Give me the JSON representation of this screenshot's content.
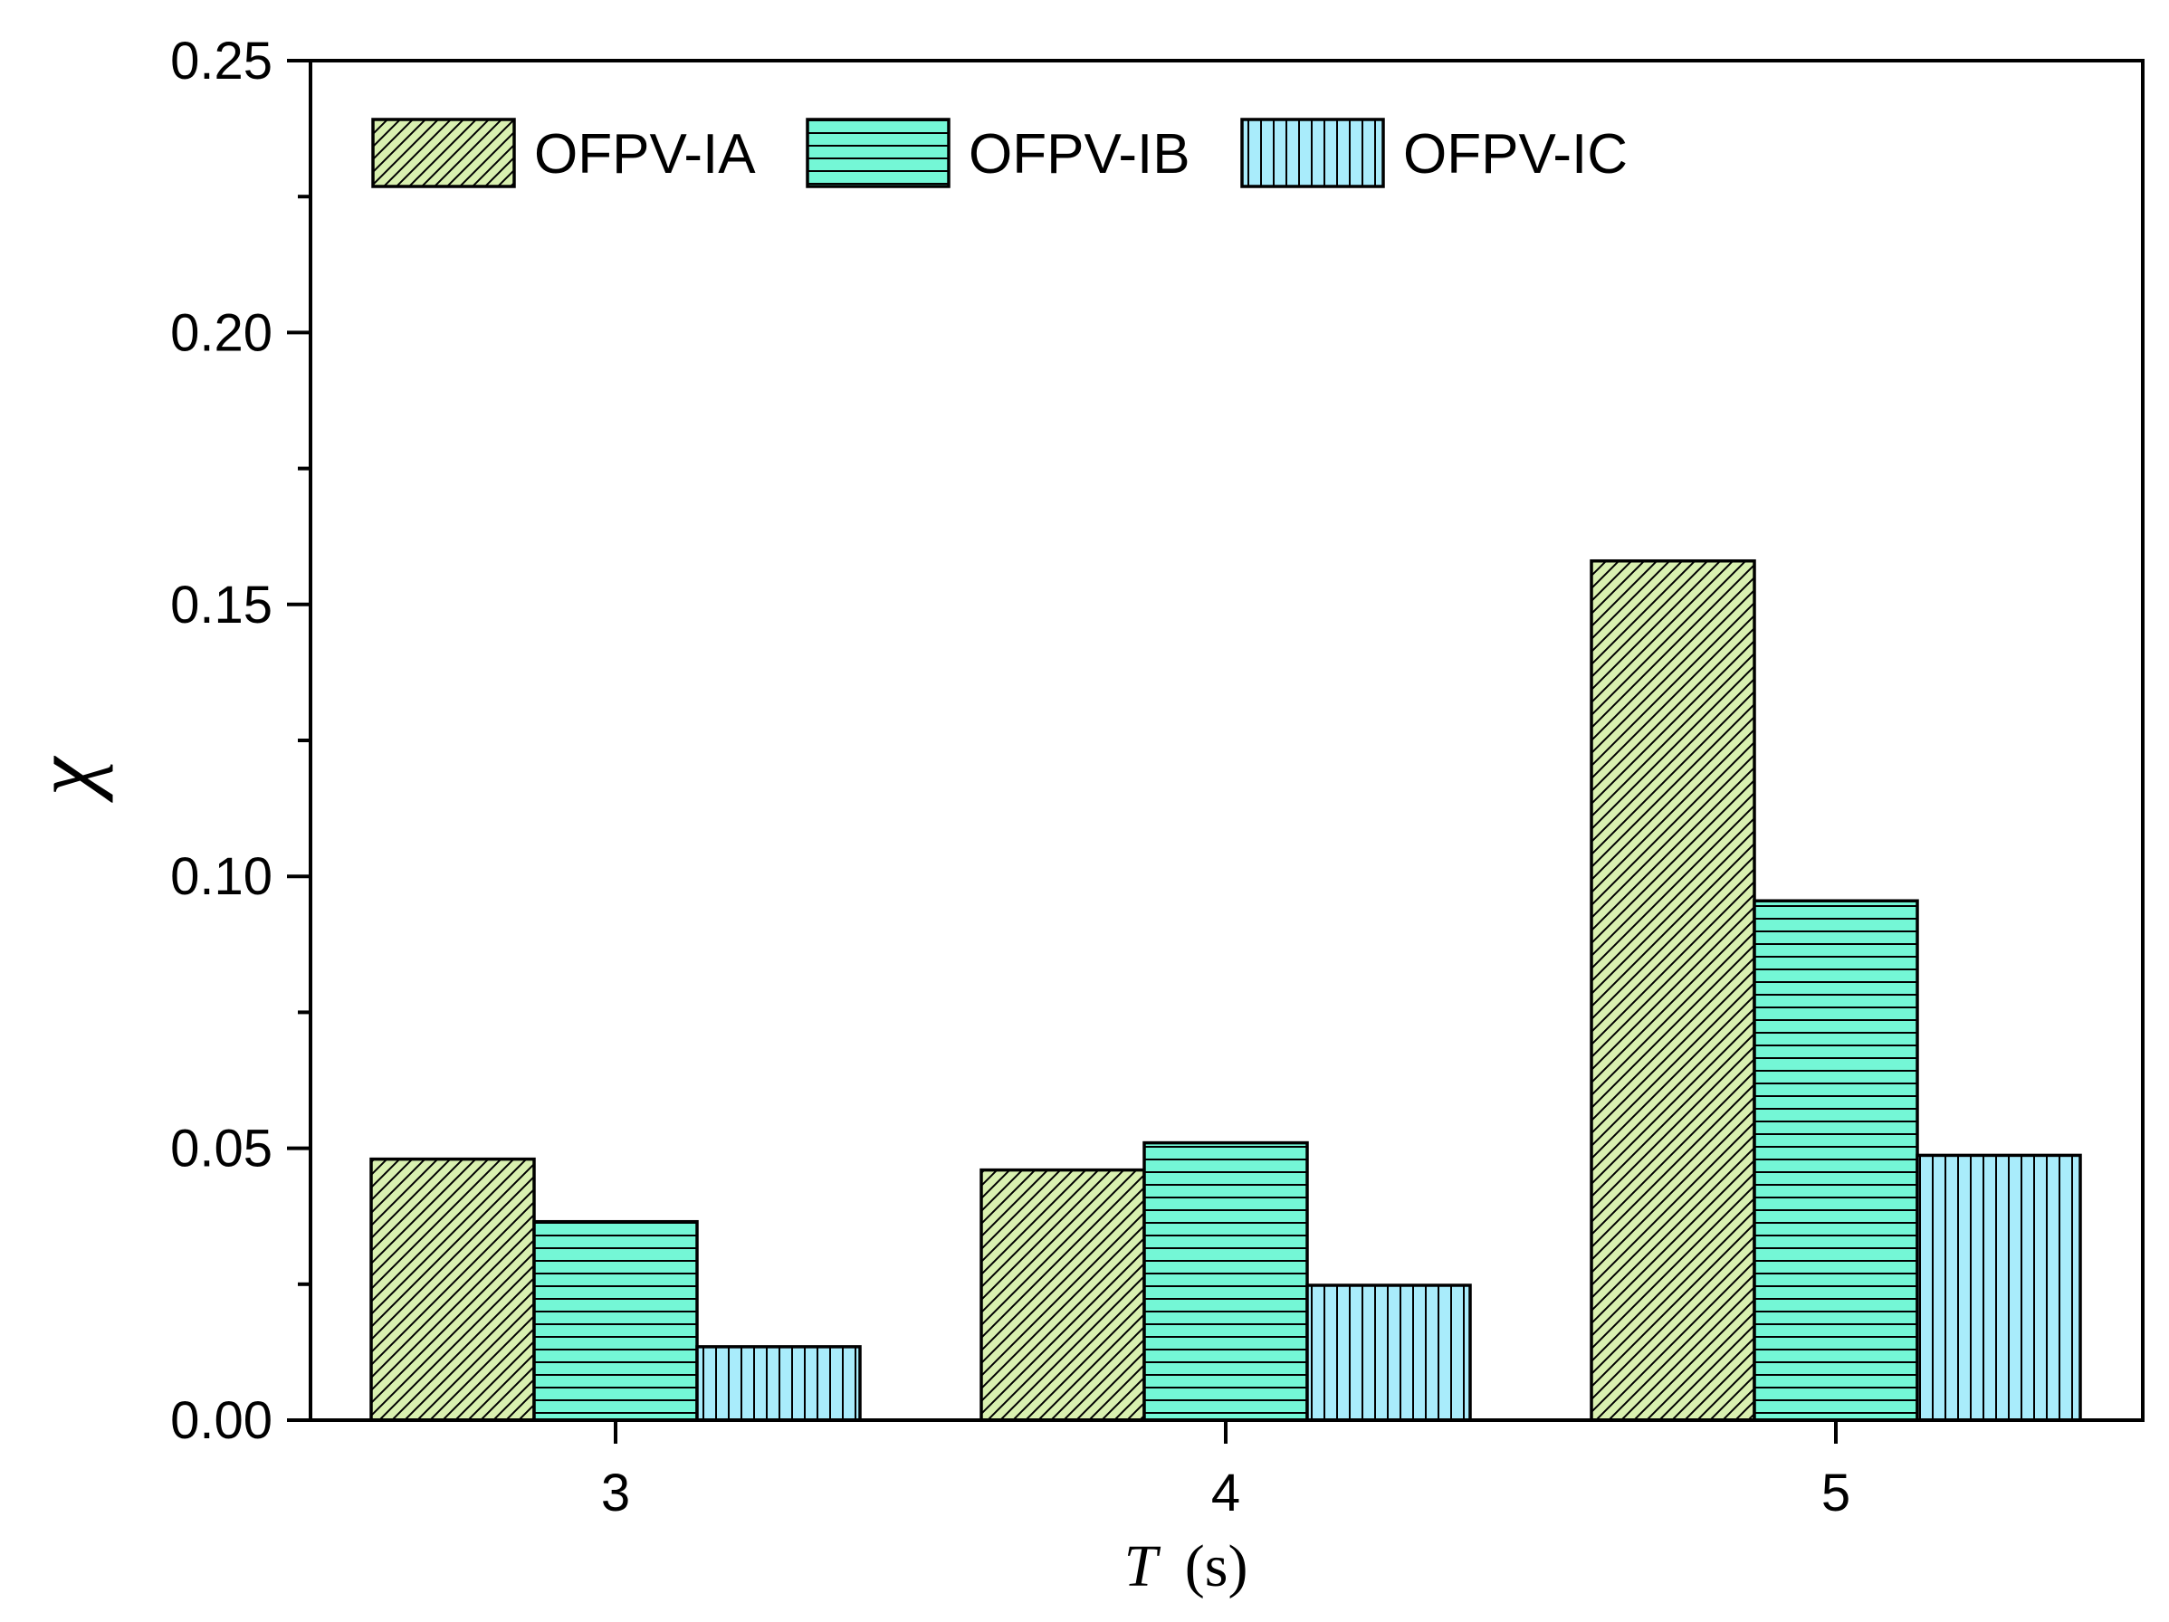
{
  "chart_data": {
    "type": "bar",
    "title": "",
    "categories": [
      "3",
      "4",
      "5"
    ],
    "series": [
      {
        "name": "OFPV-IA",
        "values": [
          0.048,
          0.046,
          0.158
        ],
        "color": "#d9f0b0",
        "pattern": "diagonal"
      },
      {
        "name": "OFPV-IB",
        "values": [
          0.0365,
          0.051,
          0.0955
        ],
        "color": "#74f7d6",
        "pattern": "horizontal"
      },
      {
        "name": "OFPV-IC",
        "values": [
          0.0135,
          0.0248,
          0.0487
        ],
        "color": "#a9ecfb",
        "pattern": "vertical"
      }
    ],
    "xlabel": {
      "var": "T",
      "unit": "(s)"
    },
    "ylabel": "χ",
    "ylim": [
      0,
      0.25
    ],
    "y_ticks": [
      "0.00",
      "0.05",
      "0.10",
      "0.15",
      "0.20",
      "0.25"
    ],
    "y_minor_step": 0.025,
    "grid": false,
    "legend_position": "top-left"
  }
}
